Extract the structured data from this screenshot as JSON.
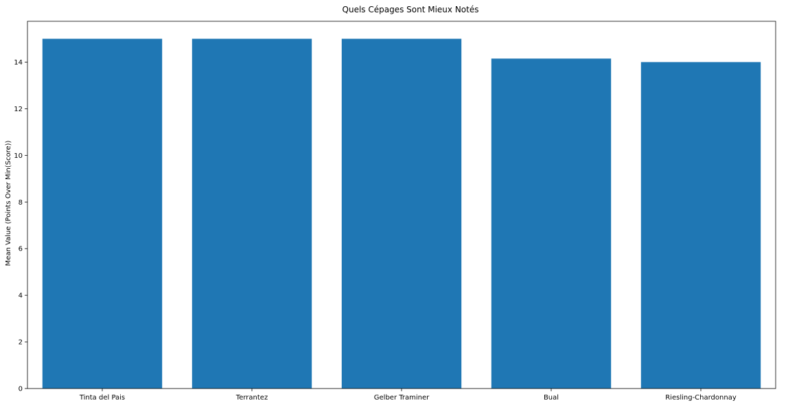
{
  "chart_data": {
    "type": "bar",
    "title": "Quels Cépages Sont Mieux Notés",
    "xlabel": "",
    "ylabel": "Mean Value (Points Over Min(Score))",
    "categories": [
      "Tinta del Pais",
      "Terrantez",
      "Gelber Traminer",
      "Bual",
      "Riesling-Chardonnay"
    ],
    "values": [
      15.0,
      15.0,
      15.0,
      14.15,
      14.0
    ],
    "ylim": [
      0,
      15.75
    ],
    "yticks": [
      "0",
      "2",
      "4",
      "6",
      "8",
      "10",
      "12",
      "14"
    ],
    "grid": false,
    "bar_color": "#1f77b4"
  }
}
